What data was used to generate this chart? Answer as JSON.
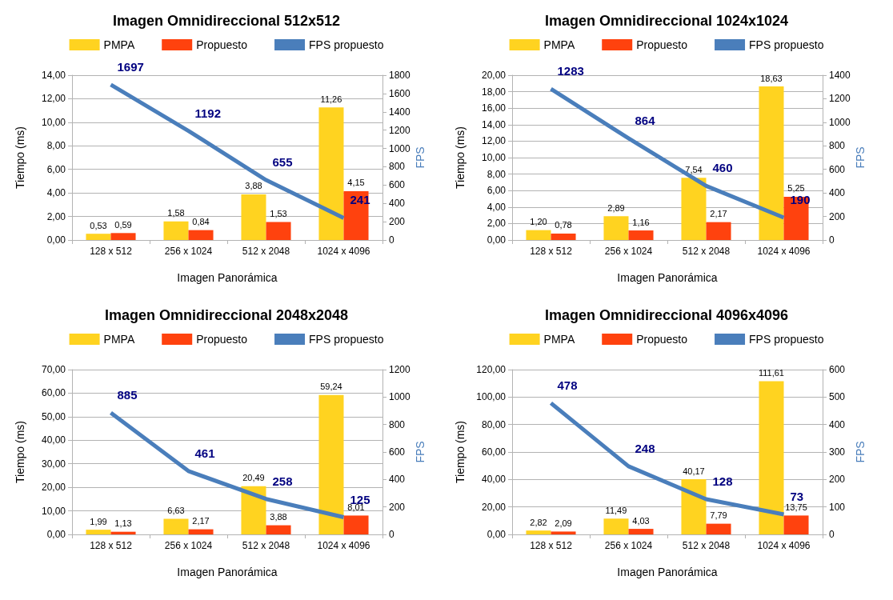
{
  "chart_data": [
    {
      "type": "bar",
      "title": "Imagen Omnidireccional 512x512",
      "xlabel": "Imagen Panorámica",
      "ylabel": "Tiempo (ms)",
      "y2label": "FPS",
      "categories": [
        "128 x 512",
        "256 x 1024",
        "512 x 2048",
        "1024 x 4096"
      ],
      "series": [
        {
          "name": "PMPA",
          "color": "#ffd320",
          "values": [
            0.53,
            1.58,
            3.88,
            11.26
          ],
          "value_labels": [
            "0,53",
            "1,58",
            "3,88",
            "11,26"
          ]
        },
        {
          "name": "Propuesto",
          "color": "#ff420e",
          "values": [
            0.59,
            0.84,
            1.53,
            4.15
          ],
          "value_labels": [
            "0,59",
            "0,84",
            "1,53",
            "4,15"
          ]
        },
        {
          "name": "FPS propuesto",
          "type": "line",
          "axis": "y2",
          "color": "#4a7ebb",
          "values": [
            1697,
            1192,
            655,
            241
          ],
          "value_labels": [
            "1697",
            "1192",
            "655",
            "241"
          ]
        }
      ],
      "ylim": [
        0,
        14
      ],
      "yticks": [
        {
          "value": 0,
          "label": "0,00"
        },
        {
          "value": 2,
          "label": "2,00"
        },
        {
          "value": 4,
          "label": "4,00"
        },
        {
          "value": 6,
          "label": "6,00"
        },
        {
          "value": 8,
          "label": "8,00"
        },
        {
          "value": 10,
          "label": "10,00"
        },
        {
          "value": 12,
          "label": "12,00"
        },
        {
          "value": 14,
          "label": "14,00"
        }
      ],
      "y2lim": [
        0,
        1800
      ],
      "y2ticks": [
        0,
        200,
        400,
        600,
        800,
        1000,
        1200,
        1400,
        1600,
        1800
      ],
      "grid": "y",
      "legend": "top",
      "marker": "none"
    },
    {
      "type": "bar",
      "title": "Imagen Omnidireccional 1024x1024",
      "xlabel": "Imagen Panorámica",
      "ylabel": "Tiempo (ms)",
      "y2label": "FPS",
      "categories": [
        "128 x 512",
        "256 x 1024",
        "512 x 2048",
        "1024 x 4096"
      ],
      "series": [
        {
          "name": "PMPA",
          "color": "#ffd320",
          "values": [
            1.2,
            2.89,
            7.54,
            18.63
          ],
          "value_labels": [
            "1,20",
            "2,89",
            "7,54",
            "18,63"
          ]
        },
        {
          "name": "Propuesto",
          "color": "#ff420e",
          "values": [
            0.78,
            1.16,
            2.17,
            5.25
          ],
          "value_labels": [
            "0,78",
            "1,16",
            "2,17",
            "5,25"
          ]
        },
        {
          "name": "FPS propuesto",
          "type": "line",
          "axis": "y2",
          "color": "#4a7ebb",
          "values": [
            1283,
            864,
            460,
            190
          ],
          "value_labels": [
            "1283",
            "864",
            "460",
            "190"
          ]
        }
      ],
      "ylim": [
        0,
        20
      ],
      "yticks": [
        {
          "value": 0,
          "label": "0,00"
        },
        {
          "value": 2,
          "label": "2,00"
        },
        {
          "value": 4,
          "label": "4,00"
        },
        {
          "value": 6,
          "label": "6,00"
        },
        {
          "value": 8,
          "label": "8,00"
        },
        {
          "value": 10,
          "label": "10,00"
        },
        {
          "value": 12,
          "label": "12,00"
        },
        {
          "value": 14,
          "label": "14,00"
        },
        {
          "value": 16,
          "label": "16,00"
        },
        {
          "value": 18,
          "label": "18,00"
        },
        {
          "value": 20,
          "label": "20,00"
        }
      ],
      "y2lim": [
        0,
        1400
      ],
      "y2ticks": [
        0,
        200,
        400,
        600,
        800,
        1000,
        1200,
        1400
      ],
      "grid": "y",
      "legend": "top",
      "marker": "none"
    },
    {
      "type": "bar",
      "title": "Imagen Omnidireccional 2048x2048",
      "xlabel": "Imagen Panorámica",
      "ylabel": "Tiempo (ms)",
      "y2label": "FPS",
      "categories": [
        "128 x 512",
        "256 x 1024",
        "512 x 2048",
        "1024 x 4096"
      ],
      "series": [
        {
          "name": "PMPA",
          "color": "#ffd320",
          "values": [
            1.99,
            6.63,
            20.49,
            59.24
          ],
          "value_labels": [
            "1,99",
            "6,63",
            "20,49",
            "59,24"
          ]
        },
        {
          "name": "Propuesto",
          "color": "#ff420e",
          "values": [
            1.13,
            2.17,
            3.88,
            8.01
          ],
          "value_labels": [
            "1,13",
            "2,17",
            "3,88",
            "8,01"
          ]
        },
        {
          "name": "FPS propuesto",
          "type": "line",
          "axis": "y2",
          "color": "#4a7ebb",
          "values": [
            885,
            461,
            258,
            125
          ],
          "value_labels": [
            "885",
            "461",
            "258",
            "125"
          ]
        }
      ],
      "ylim": [
        0,
        70
      ],
      "yticks": [
        {
          "value": 0,
          "label": "0,00"
        },
        {
          "value": 10,
          "label": "10,00"
        },
        {
          "value": 20,
          "label": "20,00"
        },
        {
          "value": 30,
          "label": "30,00"
        },
        {
          "value": 40,
          "label": "40,00"
        },
        {
          "value": 50,
          "label": "50,00"
        },
        {
          "value": 60,
          "label": "60,00"
        },
        {
          "value": 70,
          "label": "70,00"
        }
      ],
      "y2lim": [
        0,
        1200
      ],
      "y2ticks": [
        0,
        200,
        400,
        600,
        800,
        1000,
        1200
      ],
      "grid": "y",
      "legend": "top",
      "marker": "none"
    },
    {
      "type": "bar",
      "title": "Imagen Omnidireccional 4096x4096",
      "xlabel": "Imagen Panorámica",
      "ylabel": "Tiempo (ms)",
      "y2label": "FPS",
      "categories": [
        "128 x 512",
        "256 x 1024",
        "512 x 2048",
        "1024 x 4096"
      ],
      "series": [
        {
          "name": "PMPA",
          "color": "#ffd320",
          "values": [
            2.82,
            11.49,
            40.17,
            111.61
          ],
          "value_labels": [
            "2,82",
            "11,49",
            "40,17",
            "111,61"
          ]
        },
        {
          "name": "Propuesto",
          "color": "#ff420e",
          "values": [
            2.09,
            4.03,
            7.79,
            13.75
          ],
          "value_labels": [
            "2,09",
            "4,03",
            "7,79",
            "13,75"
          ]
        },
        {
          "name": "FPS propuesto",
          "type": "line",
          "axis": "y2",
          "color": "#4a7ebb",
          "values": [
            478,
            248,
            128,
            73
          ],
          "value_labels": [
            "478",
            "248",
            "128",
            "73"
          ]
        }
      ],
      "ylim": [
        0,
        120
      ],
      "yticks": [
        {
          "value": 0,
          "label": "0,00"
        },
        {
          "value": 20,
          "label": "20,00"
        },
        {
          "value": 40,
          "label": "40,00"
        },
        {
          "value": 60,
          "label": "60,00"
        },
        {
          "value": 80,
          "label": "80,00"
        },
        {
          "value": 100,
          "label": "100,00"
        },
        {
          "value": 120,
          "label": "120,00"
        }
      ],
      "y2lim": [
        0,
        600
      ],
      "y2ticks": [
        0,
        100,
        200,
        300,
        400,
        500,
        600
      ],
      "grid": "y",
      "legend": "top",
      "marker": "none"
    }
  ]
}
